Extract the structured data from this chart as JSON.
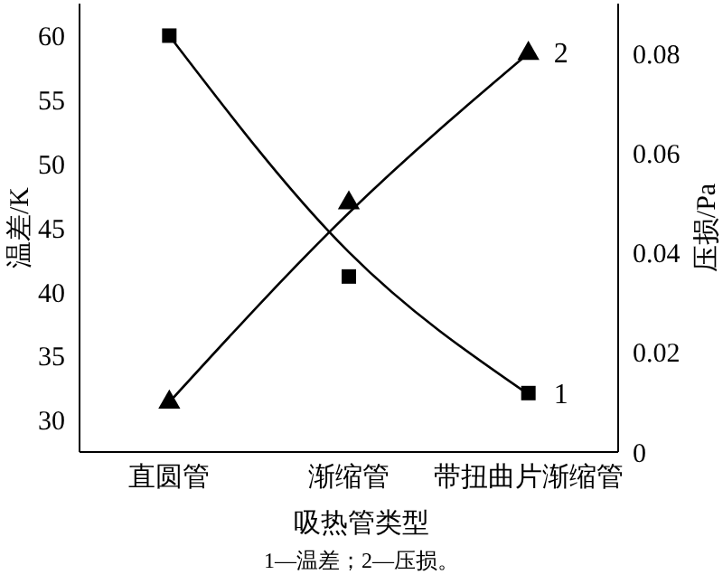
{
  "chart_data": {
    "type": "line",
    "xlabel": "吸热管类型",
    "ylabel": "温差/K",
    "y2label": "压损/Pa",
    "categories": [
      "直圆管",
      "渐缩管",
      "带扭曲片渐缩管"
    ],
    "series": [
      {
        "name": "1",
        "color": "#000000",
        "values": [
          60,
          43.1,
          32
        ],
        "marker": "none"
      },
      {
        "type": "scatter",
        "color": "#000000",
        "values": [
          60,
          41.2,
          32.1
        ],
        "marker": "square"
      },
      {
        "name": "2",
        "color": "#000000",
        "values": [
          0.01,
          0.048,
          0.08
        ],
        "marker": "none",
        "axis": "y2"
      },
      {
        "type": "scatter",
        "color": "#000000",
        "values": [
          0.01,
          0.05,
          0.08
        ],
        "marker": "triangle",
        "axis": "y2"
      }
    ],
    "ylim": [
      27.5,
      62.5
    ],
    "yticks": [
      30,
      35,
      40,
      45,
      50,
      55,
      60
    ],
    "y2lim": [
      0,
      0.09
    ],
    "y2ticks": [
      0,
      0.02,
      0.04,
      0.06,
      0.08
    ],
    "grid": false,
    "legend": false,
    "annotations": [
      "1—温差；2—压损。"
    ]
  }
}
